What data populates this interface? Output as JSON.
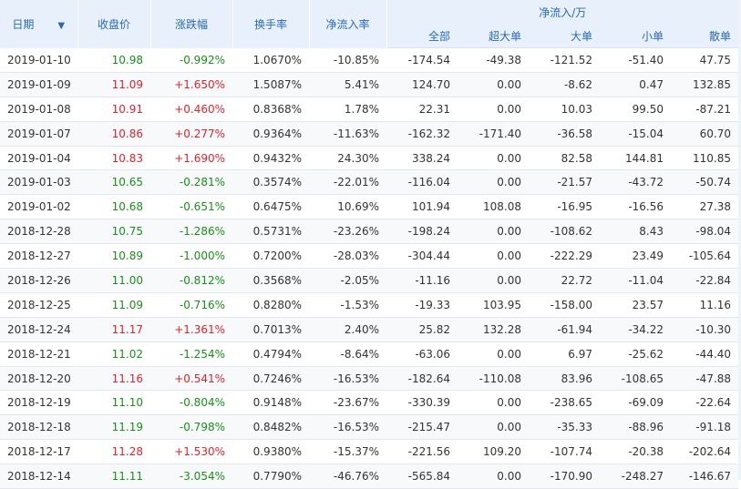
{
  "colors": {
    "header_bg": "#e8f1fb",
    "header_text": "#2b69b5",
    "up": "#e0232b",
    "down": "#1a8e1a"
  },
  "header": {
    "date": "日期",
    "close": "收盘价",
    "change": "涨跌幅",
    "turnover": "换手率",
    "net_inflow_rate": "净流入率",
    "net_flow_group": "净流入/万",
    "sub": {
      "all": "全部",
      "super": "超大单",
      "large": "大单",
      "small": "小单",
      "retail": "散单"
    },
    "sort_icon": "arrow-down-icon"
  },
  "rows": [
    {
      "date": "2019-01-10",
      "close": "10.98",
      "change": "-0.992%",
      "turnover": "1.0670%",
      "rate": "-10.85%",
      "all": "-174.54",
      "super": "-49.38",
      "large": "-121.52",
      "small": "-51.40",
      "retail": "47.75",
      "dir": "down"
    },
    {
      "date": "2019-01-09",
      "close": "11.09",
      "change": "+1.650%",
      "turnover": "1.5087%",
      "rate": "5.41%",
      "all": "124.70",
      "super": "0.00",
      "large": "-8.62",
      "small": "0.47",
      "retail": "132.85",
      "dir": "up"
    },
    {
      "date": "2019-01-08",
      "close": "10.91",
      "change": "+0.460%",
      "turnover": "0.8368%",
      "rate": "1.78%",
      "all": "22.31",
      "super": "0.00",
      "large": "10.03",
      "small": "99.50",
      "retail": "-87.21",
      "dir": "up"
    },
    {
      "date": "2019-01-07",
      "close": "10.86",
      "change": "+0.277%",
      "turnover": "0.9364%",
      "rate": "-11.63%",
      "all": "-162.32",
      "super": "-171.40",
      "large": "-36.58",
      "small": "-15.04",
      "retail": "60.70",
      "dir": "up"
    },
    {
      "date": "2019-01-04",
      "close": "10.83",
      "change": "+1.690%",
      "turnover": "0.9432%",
      "rate": "24.30%",
      "all": "338.24",
      "super": "0.00",
      "large": "82.58",
      "small": "144.81",
      "retail": "110.85",
      "dir": "up"
    },
    {
      "date": "2019-01-03",
      "close": "10.65",
      "change": "-0.281%",
      "turnover": "0.3574%",
      "rate": "-22.01%",
      "all": "-116.04",
      "super": "0.00",
      "large": "-21.57",
      "small": "-43.72",
      "retail": "-50.74",
      "dir": "down"
    },
    {
      "date": "2019-01-02",
      "close": "10.68",
      "change": "-0.651%",
      "turnover": "0.6475%",
      "rate": "10.69%",
      "all": "101.94",
      "super": "108.08",
      "large": "-16.95",
      "small": "-16.56",
      "retail": "27.38",
      "dir": "down"
    },
    {
      "date": "2018-12-28",
      "close": "10.75",
      "change": "-1.286%",
      "turnover": "0.5731%",
      "rate": "-23.26%",
      "all": "-198.24",
      "super": "0.00",
      "large": "-108.62",
      "small": "8.43",
      "retail": "-98.04",
      "dir": "down"
    },
    {
      "date": "2018-12-27",
      "close": "10.89",
      "change": "-1.000%",
      "turnover": "0.7200%",
      "rate": "-28.03%",
      "all": "-304.44",
      "super": "0.00",
      "large": "-222.29",
      "small": "23.49",
      "retail": "-105.64",
      "dir": "down"
    },
    {
      "date": "2018-12-26",
      "close": "11.00",
      "change": "-0.812%",
      "turnover": "0.3568%",
      "rate": "-2.05%",
      "all": "-11.16",
      "super": "0.00",
      "large": "22.72",
      "small": "-11.04",
      "retail": "-22.84",
      "dir": "down"
    },
    {
      "date": "2018-12-25",
      "close": "11.09",
      "change": "-0.716%",
      "turnover": "0.8280%",
      "rate": "-1.53%",
      "all": "-19.33",
      "super": "103.95",
      "large": "-158.00",
      "small": "23.57",
      "retail": "11.16",
      "dir": "down"
    },
    {
      "date": "2018-12-24",
      "close": "11.17",
      "change": "+1.361%",
      "turnover": "0.7013%",
      "rate": "2.40%",
      "all": "25.82",
      "super": "132.28",
      "large": "-61.94",
      "small": "-34.22",
      "retail": "-10.30",
      "dir": "up"
    },
    {
      "date": "2018-12-21",
      "close": "11.02",
      "change": "-1.254%",
      "turnover": "0.4794%",
      "rate": "-8.64%",
      "all": "-63.06",
      "super": "0.00",
      "large": "6.97",
      "small": "-25.62",
      "retail": "-44.40",
      "dir": "down"
    },
    {
      "date": "2018-12-20",
      "close": "11.16",
      "change": "+0.541%",
      "turnover": "0.7246%",
      "rate": "-16.53%",
      "all": "-182.64",
      "super": "-110.08",
      "large": "83.96",
      "small": "-108.65",
      "retail": "-47.88",
      "dir": "up"
    },
    {
      "date": "2018-12-19",
      "close": "11.10",
      "change": "-0.804%",
      "turnover": "0.9148%",
      "rate": "-23.67%",
      "all": "-330.39",
      "super": "0.00",
      "large": "-238.65",
      "small": "-69.09",
      "retail": "-22.64",
      "dir": "down"
    },
    {
      "date": "2018-12-18",
      "close": "11.19",
      "change": "-0.798%",
      "turnover": "0.8482%",
      "rate": "-16.53%",
      "all": "-215.47",
      "super": "0.00",
      "large": "-35.33",
      "small": "-88.96",
      "retail": "-91.18",
      "dir": "down"
    },
    {
      "date": "2018-12-17",
      "close": "11.28",
      "change": "+1.530%",
      "turnover": "0.9380%",
      "rate": "-15.37%",
      "all": "-221.56",
      "super": "109.20",
      "large": "-107.74",
      "small": "-20.38",
      "retail": "-202.64",
      "dir": "up"
    },
    {
      "date": "2018-12-14",
      "close": "11.11",
      "change": "-3.054%",
      "turnover": "0.7790%",
      "rate": "-46.76%",
      "all": "-565.84",
      "super": "0.00",
      "large": "-170.90",
      "small": "-248.27",
      "retail": "-146.67",
      "dir": "down"
    }
  ]
}
